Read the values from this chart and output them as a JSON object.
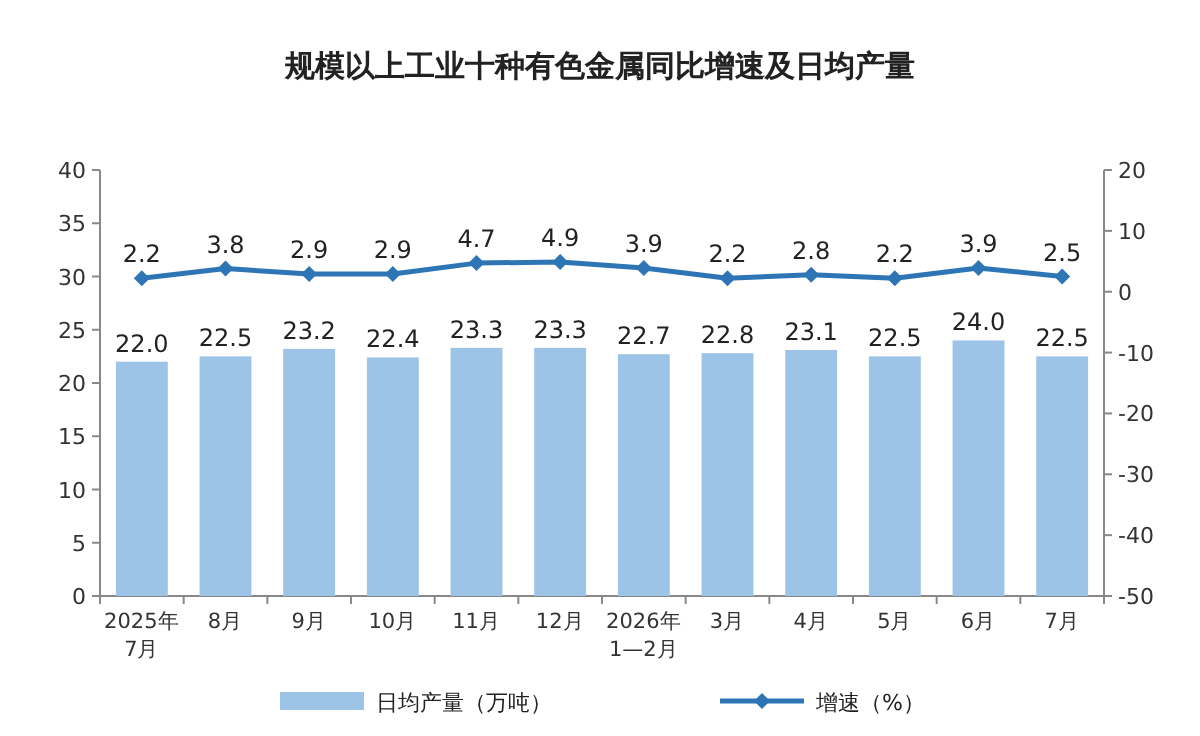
{
  "chart_data": {
    "type": "bar",
    "title": "规模以上工业十种有色金属同比增速及日均产量",
    "categories": [
      "2025年\n7月",
      "8月",
      "9月",
      "10月",
      "11月",
      "12月",
      "2026年\n1—2月",
      "3月",
      "4月",
      "5月",
      "6月",
      "7月"
    ],
    "series": [
      {
        "name": "日均产量（万吨）",
        "color": "#9dc3e6",
        "values": [
          22.0,
          22.5,
          23.2,
          22.4,
          23.3,
          23.3,
          22.7,
          22.8,
          23.1,
          22.5,
          24.0,
          22.5
        ],
        "value_labels": [
          "22.0",
          "22.5",
          "23.2",
          "22.4",
          "23.3",
          "23.3",
          "22.7",
          "22.8",
          "23.1",
          "22.5",
          "24.0",
          "22.5"
        ]
      },
      {
        "name": "增速（%）",
        "type": "line",
        "axis": "y2",
        "color": "#2e75b6",
        "values": [
          2.2,
          3.8,
          2.9,
          2.9,
          4.7,
          4.9,
          3.9,
          2.2,
          2.8,
          2.2,
          3.9,
          2.5
        ]
      }
    ],
    "ylim": [
      0,
      40
    ],
    "yticks": [
      0,
      5,
      10,
      15,
      20,
      25,
      30,
      35,
      40
    ],
    "y2lim": [
      -50,
      20
    ],
    "y2ticks": [
      -50,
      -40,
      -30,
      -20,
      -10,
      0,
      10,
      20
    ],
    "marker": "diamond",
    "data_labels": true,
    "legend": "bottom",
    "grid": false
  }
}
